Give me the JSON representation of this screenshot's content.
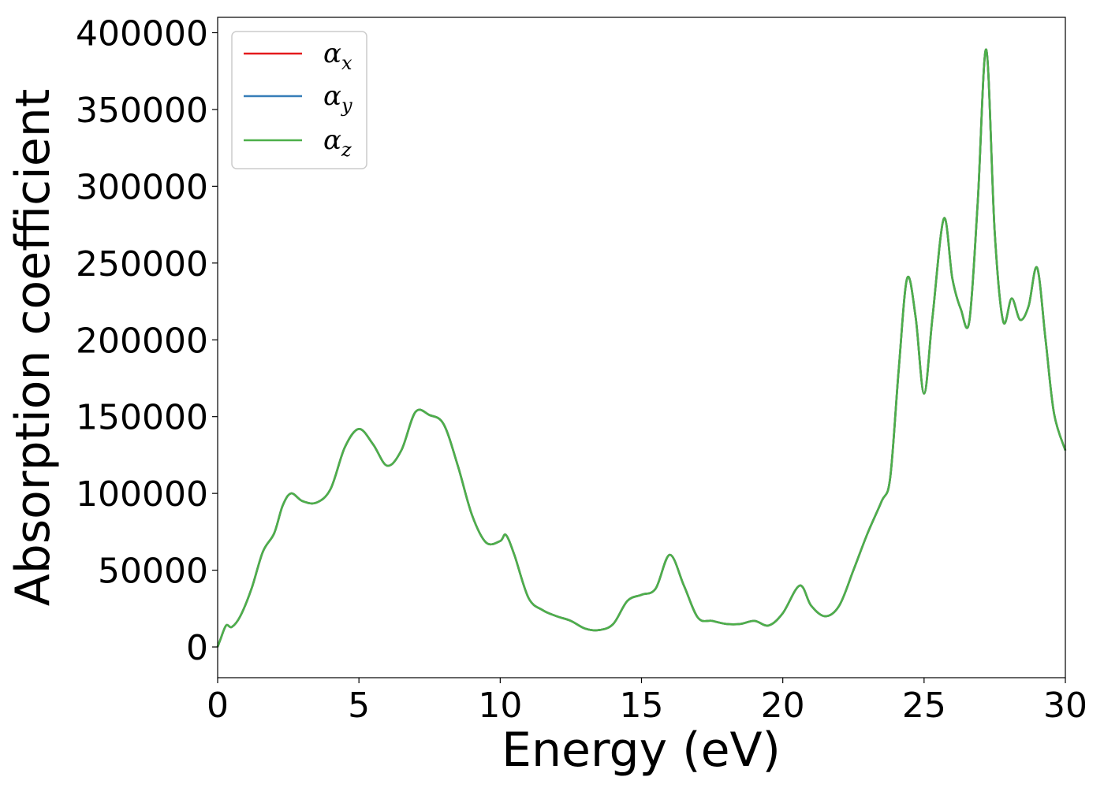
{
  "chart_data": {
    "type": "line",
    "title": "",
    "xlabel": "Energy (eV)",
    "ylabel": "Absorption coefficient",
    "xlim": [
      0,
      30
    ],
    "ylim": [
      -20000,
      410000
    ],
    "xticks": [
      0,
      5,
      10,
      15,
      20,
      25,
      30
    ],
    "yticks": [
      0,
      50000,
      100000,
      150000,
      200000,
      250000,
      300000,
      350000,
      400000
    ],
    "xtick_labels": [
      "0",
      "5",
      "10",
      "15",
      "20",
      "25",
      "30"
    ],
    "ytick_labels": [
      "0",
      "50000",
      "100000",
      "150000",
      "200000",
      "250000",
      "300000",
      "350000",
      "400000"
    ],
    "grid": false,
    "legend_position": "top-left",
    "x": [
      0,
      0.1,
      0.3,
      0.5,
      0.8,
      1.2,
      1.6,
      2.0,
      2.3,
      2.6,
      3.0,
      3.5,
      4.0,
      4.5,
      5.0,
      5.5,
      6.0,
      6.5,
      7.0,
      7.5,
      8.0,
      8.5,
      9.0,
      9.5,
      10.0,
      10.2,
      10.5,
      11.0,
      11.5,
      12.0,
      12.5,
      13.0,
      13.5,
      14.0,
      14.5,
      15.0,
      15.5,
      16.0,
      16.5,
      17.0,
      17.5,
      18.0,
      18.5,
      19.0,
      19.5,
      20.0,
      20.6,
      21.0,
      21.5,
      22.0,
      22.5,
      23.0,
      23.5,
      23.8,
      24.1,
      24.4,
      24.7,
      25.0,
      25.3,
      25.7,
      26.0,
      26.3,
      26.6,
      26.9,
      27.2,
      27.5,
      27.8,
      28.1,
      28.4,
      28.7,
      29.0,
      29.3,
      29.6,
      30.0
    ],
    "series": [
      {
        "name": "α_x",
        "symbol": "α",
        "sub": "x",
        "color": "#e41a1c",
        "values": [
          0,
          5000,
          14000,
          13000,
          20000,
          38000,
          62000,
          74000,
          92000,
          100000,
          95000,
          94000,
          103000,
          130000,
          142000,
          132000,
          118000,
          128000,
          153000,
          151000,
          145000,
          118000,
          86000,
          68000,
          69000,
          73000,
          60000,
          32000,
          24000,
          20000,
          17000,
          12000,
          11000,
          15000,
          30000,
          34000,
          38000,
          60000,
          40000,
          19000,
          17000,
          15000,
          15000,
          17000,
          14000,
          22000,
          40000,
          27000,
          20000,
          27000,
          50000,
          74000,
          95000,
          110000,
          180000,
          240000,
          215000,
          165000,
          215000,
          279000,
          240000,
          220000,
          212000,
          290000,
          389000,
          270000,
          212000,
          227000,
          213000,
          222000,
          247000,
          200000,
          152000,
          128000
        ]
      },
      {
        "name": "α_y",
        "symbol": "α",
        "sub": "y",
        "color": "#377eb8",
        "values": [
          0,
          5000,
          14000,
          13000,
          20000,
          38000,
          62000,
          74000,
          92000,
          100000,
          95000,
          94000,
          103000,
          130000,
          142000,
          132000,
          118000,
          128000,
          153000,
          151000,
          145000,
          118000,
          86000,
          68000,
          69000,
          73000,
          60000,
          32000,
          24000,
          20000,
          17000,
          12000,
          11000,
          15000,
          30000,
          34000,
          38000,
          60000,
          40000,
          19000,
          17000,
          15000,
          15000,
          17000,
          14000,
          22000,
          40000,
          27000,
          20000,
          27000,
          50000,
          74000,
          95000,
          110000,
          180000,
          240000,
          215000,
          165000,
          215000,
          279000,
          240000,
          220000,
          212000,
          290000,
          389000,
          270000,
          212000,
          227000,
          213000,
          222000,
          247000,
          200000,
          152000,
          128000
        ]
      },
      {
        "name": "α_z",
        "symbol": "α",
        "sub": "z",
        "color": "#4daf4a",
        "values": [
          0,
          5000,
          14000,
          13000,
          20000,
          38000,
          62000,
          74000,
          92000,
          100000,
          95000,
          94000,
          103000,
          130000,
          142000,
          132000,
          118000,
          128000,
          153000,
          151000,
          145000,
          118000,
          86000,
          68000,
          69000,
          73000,
          60000,
          32000,
          24000,
          20000,
          17000,
          12000,
          11000,
          15000,
          30000,
          34000,
          38000,
          60000,
          40000,
          19000,
          17000,
          15000,
          15000,
          17000,
          14000,
          22000,
          40000,
          27000,
          20000,
          27000,
          50000,
          74000,
          95000,
          110000,
          180000,
          240000,
          215000,
          165000,
          215000,
          279000,
          240000,
          220000,
          212000,
          290000,
          389000,
          270000,
          212000,
          227000,
          213000,
          222000,
          247000,
          200000,
          152000,
          128000
        ]
      }
    ]
  }
}
